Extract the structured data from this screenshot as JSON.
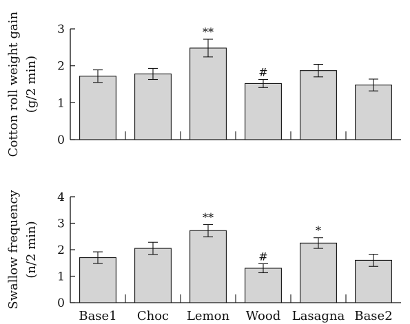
{
  "chart_data": [
    {
      "type": "bar",
      "categories": [
        "Base1",
        "Choc",
        "Lemon",
        "Wood",
        "Lasagna",
        "Base2"
      ],
      "values": [
        1.72,
        1.78,
        2.48,
        1.52,
        1.87,
        1.48
      ],
      "errors": [
        0.17,
        0.15,
        0.24,
        0.11,
        0.17,
        0.16
      ],
      "annotations": [
        "",
        "",
        "**",
        "#",
        "",
        ""
      ],
      "ylabel_line1": "Cotton roll weight gain",
      "ylabel_line2": "(g/2 min)",
      "ylim": [
        0,
        3
      ],
      "yticks": [
        "0",
        "1",
        "2",
        "3"
      ],
      "show_category_labels": false
    },
    {
      "type": "bar",
      "categories": [
        "Base1",
        "Choc",
        "Lemon",
        "Wood",
        "Lasagna",
        "Base2"
      ],
      "values": [
        1.7,
        2.05,
        2.72,
        1.3,
        2.25,
        1.6
      ],
      "errors": [
        0.22,
        0.23,
        0.23,
        0.17,
        0.2,
        0.23
      ],
      "annotations": [
        "",
        "",
        "**",
        "#",
        "*",
        ""
      ],
      "ylabel_line1": "Swallow frequency",
      "ylabel_line2": "(n/2 min)",
      "ylim": [
        0,
        4
      ],
      "yticks": [
        "0",
        "1",
        "2",
        "3",
        "4"
      ],
      "show_category_labels": true
    }
  ],
  "colors": {
    "bar_fill": "#d4d4d4",
    "stroke": "#111111"
  }
}
